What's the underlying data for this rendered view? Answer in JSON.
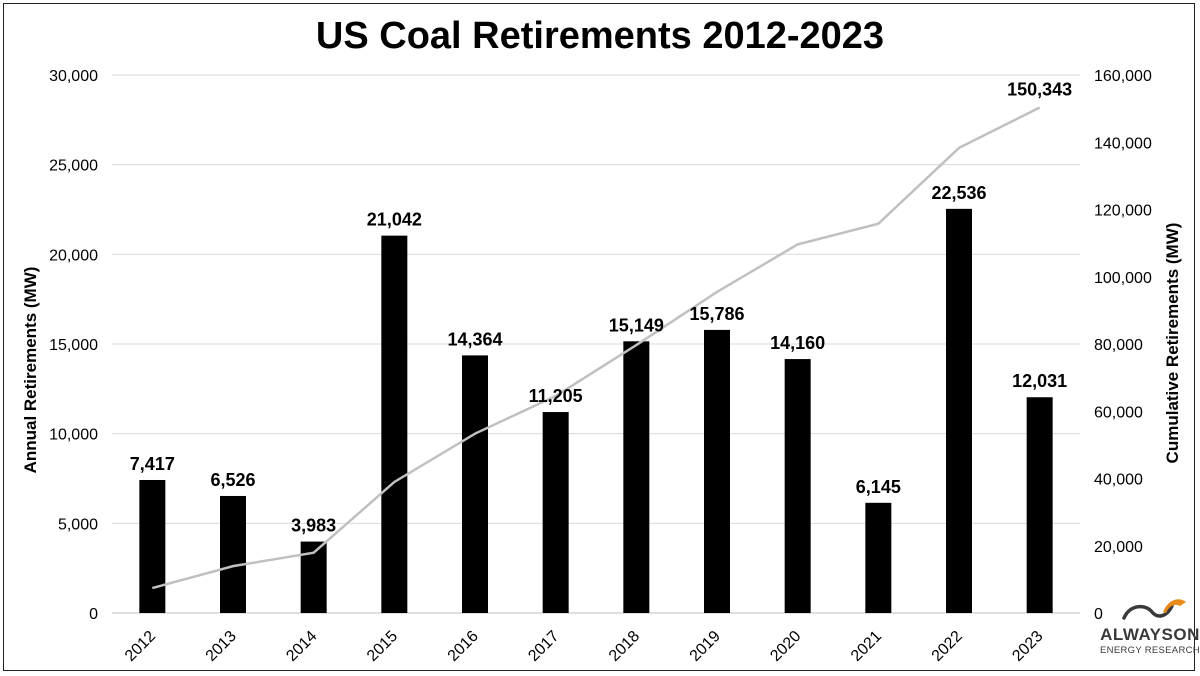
{
  "chart_data": {
    "type": "bar",
    "title": "US Coal Retirements 2012-2023",
    "categories": [
      "2012",
      "2013",
      "2014",
      "2015",
      "2016",
      "2017",
      "2018",
      "2019",
      "2020",
      "2021",
      "2022",
      "2023"
    ],
    "series": [
      {
        "kind": "bar",
        "axis": "left",
        "values": [
          7417,
          6526,
          3983,
          21042,
          14364,
          11205,
          15149,
          15786,
          14160,
          6145,
          22536,
          12031
        ],
        "labels": [
          "7,417",
          "6,526",
          "3,983",
          "21,042",
          "14,364",
          "11,205",
          "15,149",
          "15,786",
          "14,160",
          "6,145",
          "22,536",
          "12,031"
        ],
        "color": "#000000"
      },
      {
        "kind": "line",
        "axis": "right",
        "values": [
          7417,
          13943,
          17926,
          38968,
          53332,
          64537,
          79686,
          95472,
          109632,
          115777,
          138313,
          150343
        ],
        "end_label": "150,343",
        "color": "#c0c0c0"
      }
    ],
    "ylabel": "Annual Retirements (MW)",
    "y2label": "Cumulative Retirements (MW)",
    "ylim": [
      0,
      30000
    ],
    "y2lim": [
      0,
      160000
    ],
    "yticks": [
      0,
      5000,
      10000,
      15000,
      20000,
      25000,
      30000
    ],
    "yticklabels": [
      "0",
      "5,000",
      "10,000",
      "15,000",
      "20,000",
      "25,000",
      "30,000"
    ],
    "y2ticks": [
      0,
      20000,
      40000,
      60000,
      80000,
      100000,
      120000,
      140000,
      160000
    ],
    "y2ticklabels": [
      "0",
      "20,000",
      "40,000",
      "60,000",
      "80,000",
      "100,000",
      "120,000",
      "140,000",
      "160,000"
    ],
    "grid": true,
    "legend": "none"
  },
  "logo": {
    "main": "ALWAYSON",
    "sub": "ENERGY RESEARCH",
    "accent_color": "#e8891c"
  }
}
